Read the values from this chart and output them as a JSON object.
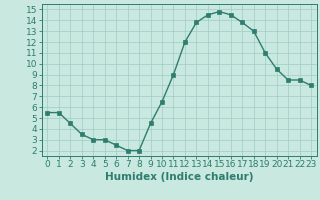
{
  "x": [
    0,
    1,
    2,
    3,
    4,
    5,
    6,
    7,
    8,
    9,
    10,
    11,
    12,
    13,
    14,
    15,
    16,
    17,
    18,
    19,
    20,
    21,
    22,
    23
  ],
  "y": [
    5.5,
    5.5,
    4.5,
    3.5,
    3.0,
    3.0,
    2.5,
    2.0,
    2.0,
    4.5,
    6.5,
    9.0,
    12.0,
    13.8,
    14.5,
    14.8,
    14.5,
    13.8,
    13.0,
    11.0,
    9.5,
    8.5,
    8.5,
    8.0
  ],
  "line_color": "#2e7d6e",
  "marker": "s",
  "markersize": 2.2,
  "linewidth": 1.0,
  "bg_color": "#c8e8e0",
  "grid_color": "#a0ccc4",
  "xlabel": "Humidex (Indice chaleur)",
  "ylim_min": 1.5,
  "ylim_max": 15.5,
  "xlim_min": -0.5,
  "xlim_max": 23.5,
  "yticks": [
    2,
    3,
    4,
    5,
    6,
    7,
    8,
    9,
    10,
    11,
    12,
    13,
    14,
    15
  ],
  "xticks": [
    0,
    1,
    2,
    3,
    4,
    5,
    6,
    7,
    8,
    9,
    10,
    11,
    12,
    13,
    14,
    15,
    16,
    17,
    18,
    19,
    20,
    21,
    22,
    23
  ],
  "tick_label_fontsize": 6.5,
  "xlabel_fontsize": 7.5
}
